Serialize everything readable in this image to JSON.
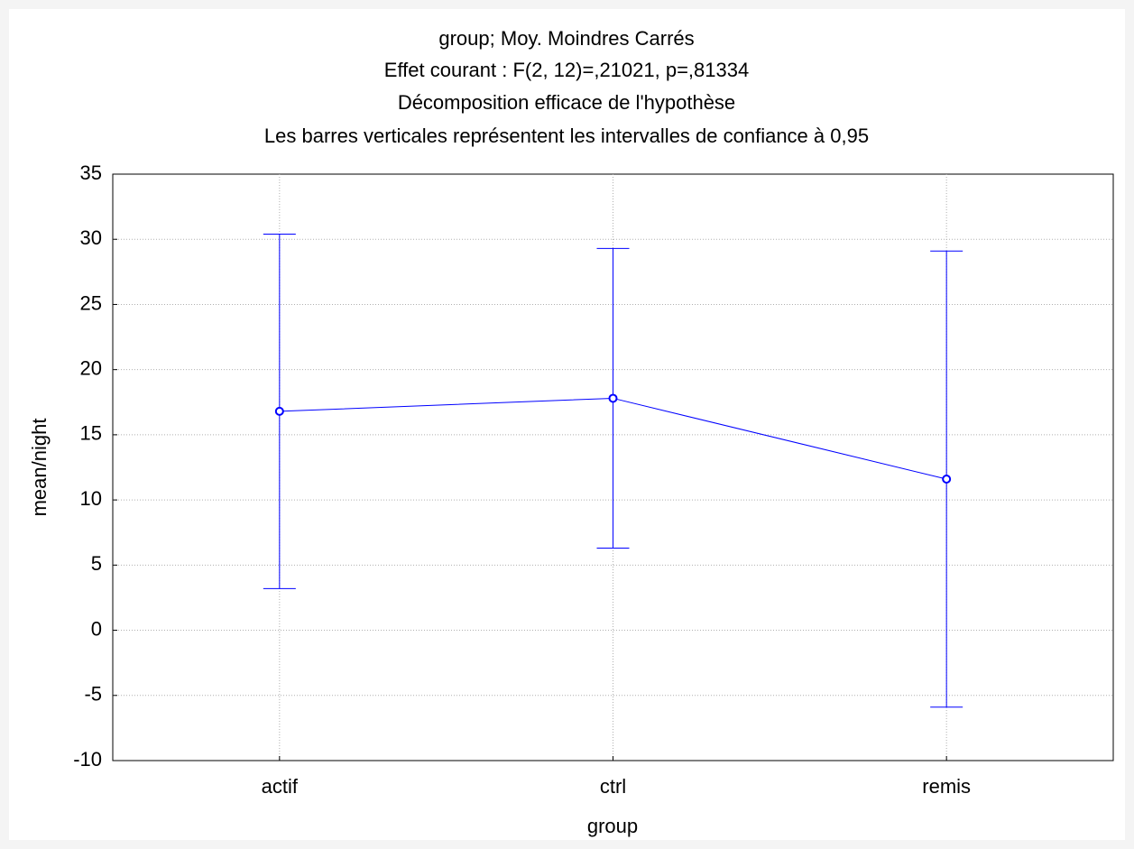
{
  "chart_data": {
    "type": "errorbar",
    "title": [
      "group; Moy. Moindres Carrés",
      "Effet courant : F(2, 12)=,21021, p=,81334",
      "Décomposition efficace de l'hypothèse",
      "Les barres verticales représentent les intervalles de confiance à 0,95"
    ],
    "x_label": "group",
    "y_label": "mean/night",
    "categories": [
      "actif",
      "ctrl",
      "remis"
    ],
    "values": [
      16.8,
      17.8,
      11.6
    ],
    "errors": [
      13.6,
      11.5,
      17.5
    ],
    "color": "#0000ff",
    "ylim": [
      -10,
      35
    ],
    "yticks": [
      -10,
      -5,
      0,
      5,
      10,
      15,
      20,
      25,
      30,
      35
    ],
    "grid": true
  }
}
